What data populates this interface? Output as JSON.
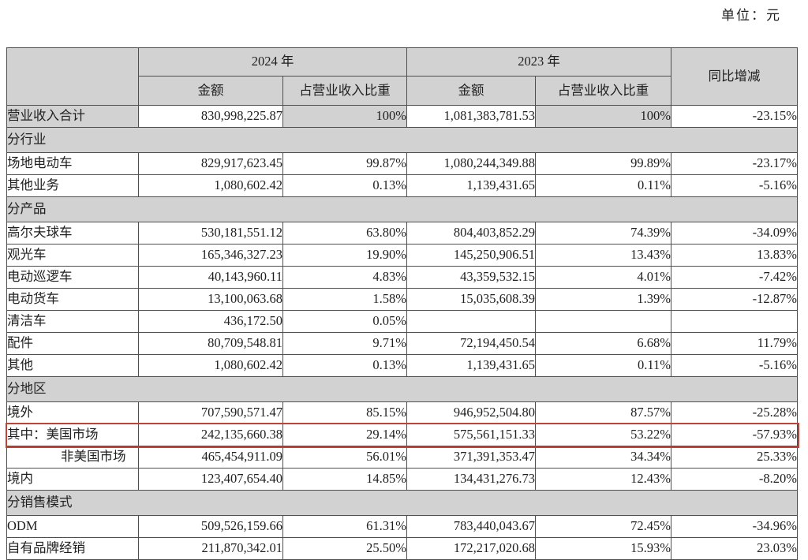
{
  "unit_label": "单位：元",
  "colors": {
    "shade_gray": "#d2d2d2",
    "highlight_red": "#c0433a",
    "border": "#4f4f4f"
  },
  "table": {
    "header": {
      "year_2024": "2024 年",
      "year_2023": "2023 年",
      "amount": "金额",
      "ratio": "占营业收入比重",
      "yoy": "同比增减"
    },
    "rows": [
      {
        "type": "data",
        "shaded": true,
        "label": "营业收入合计",
        "a2024": "830,998,225.87",
        "r2024": "100%",
        "a2023": "1,081,383,781.53",
        "r2023": "100%",
        "yoy": "-23.15%"
      },
      {
        "type": "section",
        "label": "分行业"
      },
      {
        "type": "data",
        "label": "场地电动车",
        "a2024": "829,917,623.45",
        "r2024": "99.87%",
        "a2023": "1,080,244,349.88",
        "r2023": "99.89%",
        "yoy": "-23.17%"
      },
      {
        "type": "data",
        "label": "其他业务",
        "a2024": "1,080,602.42",
        "r2024": "0.13%",
        "a2023": "1,139,431.65",
        "r2023": "0.11%",
        "yoy": "-5.16%"
      },
      {
        "type": "section",
        "label": "分产品"
      },
      {
        "type": "data",
        "label": "高尔夫球车",
        "a2024": "530,181,551.12",
        "r2024": "63.80%",
        "a2023": "804,403,852.29",
        "r2023": "74.39%",
        "yoy": "-34.09%"
      },
      {
        "type": "data",
        "label": "观光车",
        "a2024": "165,346,327.23",
        "r2024": "19.90%",
        "a2023": "145,250,906.51",
        "r2023": "13.43%",
        "yoy": "13.83%"
      },
      {
        "type": "data",
        "label": "电动巡逻车",
        "a2024": "40,143,960.11",
        "r2024": "4.83%",
        "a2023": "43,359,532.15",
        "r2023": "4.01%",
        "yoy": "-7.42%"
      },
      {
        "type": "data",
        "label": "电动货车",
        "a2024": "13,100,063.68",
        "r2024": "1.58%",
        "a2023": "15,035,608.39",
        "r2023": "1.39%",
        "yoy": "-12.87%"
      },
      {
        "type": "data",
        "label": "清洁车",
        "a2024": "436,172.50",
        "r2024": "0.05%",
        "a2023": "",
        "r2023": "",
        "yoy": ""
      },
      {
        "type": "data",
        "label": "配件",
        "a2024": "80,709,548.81",
        "r2024": "9.71%",
        "a2023": "72,194,450.54",
        "r2023": "6.68%",
        "yoy": "11.79%"
      },
      {
        "type": "data",
        "label": "其他",
        "a2024": "1,080,602.42",
        "r2024": "0.13%",
        "a2023": "1,139,431.65",
        "r2023": "0.11%",
        "yoy": "-5.16%"
      },
      {
        "type": "section",
        "label": "分地区"
      },
      {
        "type": "data",
        "label": "境外",
        "a2024": "707,590,571.47",
        "r2024": "85.15%",
        "a2023": "946,952,504.80",
        "r2023": "87.57%",
        "yoy": "-25.28%"
      },
      {
        "type": "data",
        "highlighted": true,
        "label": "其中：美国市场",
        "a2024": "242,135,660.38",
        "r2024": "29.14%",
        "a2023": "575,561,151.33",
        "r2023": "53.22%",
        "yoy": "-57.93%"
      },
      {
        "type": "data",
        "indent": true,
        "label": "非美国市场",
        "a2024": "465,454,911.09",
        "r2024": "56.01%",
        "a2023": "371,391,353.47",
        "r2023": "34.34%",
        "yoy": "25.33%"
      },
      {
        "type": "data",
        "label": "境内",
        "a2024": "123,407,654.40",
        "r2024": "14.85%",
        "a2023": "134,431,276.73",
        "r2023": "12.43%",
        "yoy": "-8.20%"
      },
      {
        "type": "section",
        "label": "分销售模式"
      },
      {
        "type": "data",
        "label": "ODM",
        "a2024": "509,526,159.66",
        "r2024": "61.31%",
        "a2023": "783,440,043.67",
        "r2023": "72.45%",
        "yoy": "-34.96%"
      },
      {
        "type": "data",
        "label": "自有品牌经销",
        "a2024": "211,870,342.01",
        "r2024": "25.50%",
        "a2023": "172,217,020.68",
        "r2023": "15.93%",
        "yoy": "23.03%"
      }
    ]
  }
}
